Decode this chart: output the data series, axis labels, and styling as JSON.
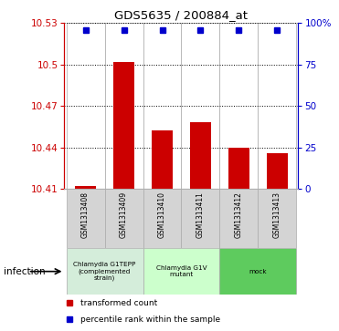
{
  "title": "GDS5635 / 200884_at",
  "samples": [
    "GSM1313408",
    "GSM1313409",
    "GSM1313410",
    "GSM1313411",
    "GSM1313412",
    "GSM1313413"
  ],
  "bar_values": [
    10.412,
    10.502,
    10.452,
    10.458,
    10.44,
    10.436
  ],
  "percentile_values": [
    96,
    96,
    96,
    96,
    96,
    96
  ],
  "ylim_left": [
    10.41,
    10.53
  ],
  "ylim_right": [
    0,
    100
  ],
  "yticks_left": [
    10.41,
    10.44,
    10.47,
    10.5,
    10.53
  ],
  "yticks_right": [
    0,
    25,
    50,
    75,
    100
  ],
  "ytick_labels_left": [
    "10.41",
    "10.44",
    "10.47",
    "10.5",
    "10.53"
  ],
  "ytick_labels_right": [
    "0",
    "25",
    "50",
    "75",
    "100%"
  ],
  "bar_color": "#cc0000",
  "dot_color": "#0000cc",
  "bar_bottom": 10.41,
  "groups": [
    {
      "label": "Chlamydia G1TEPP\n(complemented\nstrain)",
      "indices": [
        0,
        1
      ],
      "color": "#d4edda"
    },
    {
      "label": "Chlamydia G1V\nmutant",
      "indices": [
        2,
        3
      ],
      "color": "#ccffcc"
    },
    {
      "label": "mock",
      "indices": [
        4,
        5
      ],
      "color": "#5ecb5e"
    }
  ],
  "factor_label": "infection",
  "legend_bar_label": "transformed count",
  "legend_dot_label": "percentile rank within the sample",
  "bg_color": "#ffffff",
  "x_positions": [
    0,
    1,
    2,
    3,
    4,
    5
  ],
  "n_samples": 6,
  "group_bg_color": "#d4d4d4",
  "divider_color": "#aaaaaa"
}
